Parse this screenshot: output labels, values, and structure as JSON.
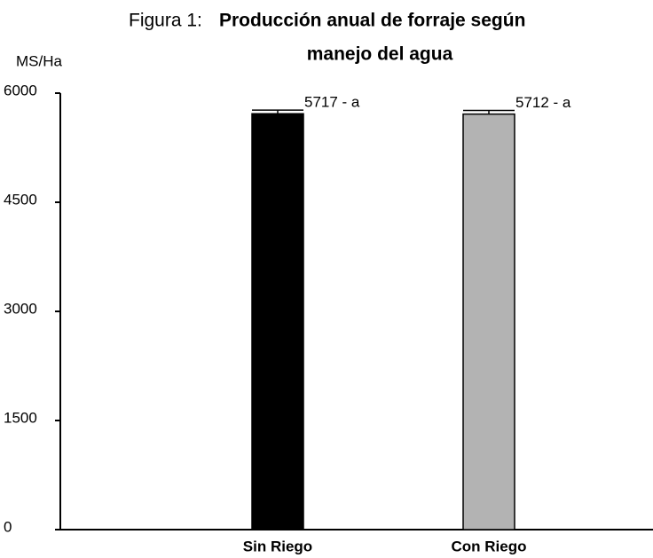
{
  "chart_data": {
    "type": "bar",
    "title": [
      "Figura 1:",
      "Producción anual de forraje según",
      "manejo del agua"
    ],
    "y_label": "MS/Ha",
    "categories": [
      "Sin Riego",
      "Con Riego"
    ],
    "values": [
      5717,
      5712
    ],
    "errors": [
      50,
      50
    ],
    "value_labels": [
      "5717 - a",
      "5712 - a"
    ],
    "colors": [
      "#000000",
      "#b3b3b3"
    ],
    "ylim": [
      0,
      6000
    ],
    "yticks": [
      0,
      1500,
      3000,
      4500,
      6000
    ],
    "grid": false
  }
}
